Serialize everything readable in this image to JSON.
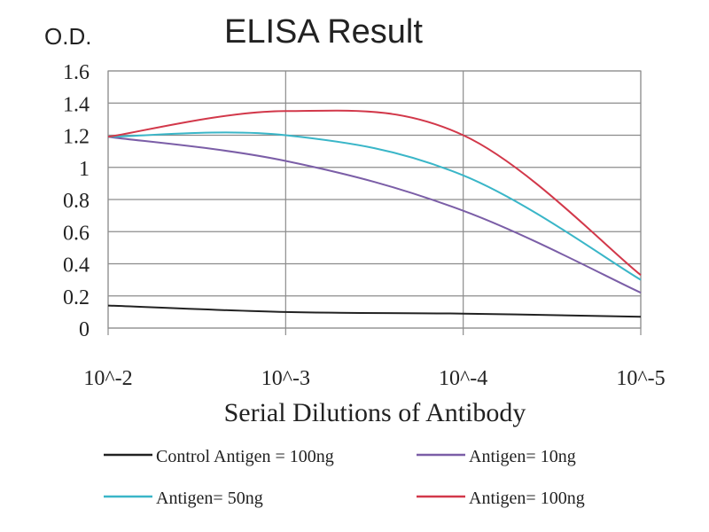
{
  "chart_data": {
    "type": "line",
    "title": "ELISA Result",
    "ylabel": "O.D.",
    "xlabel": "Serial Dilutions of Antibody",
    "categories": [
      "10^-2",
      "10^-3",
      "10^-4",
      "10^-5"
    ],
    "yticks": [
      "0",
      "0.2",
      "0.4",
      "0.6",
      "0.8",
      "1",
      "1.2",
      "1.4",
      "1.6"
    ],
    "ylim": [
      0,
      1.6
    ],
    "grid": true,
    "legend_position": "bottom",
    "series": [
      {
        "name": "Control Antigen = 100ng",
        "color": "#222222",
        "values": [
          0.14,
          0.1,
          0.09,
          0.07
        ]
      },
      {
        "name": "Antigen= 10ng",
        "color": "#7b5ea7",
        "values": [
          1.19,
          1.04,
          0.73,
          0.22
        ]
      },
      {
        "name": "Antigen= 50ng",
        "color": "#3ab6c8",
        "values": [
          1.19,
          1.2,
          0.95,
          0.3
        ]
      },
      {
        "name": "Antigen= 100ng",
        "color": "#d2384a",
        "values": [
          1.19,
          1.35,
          1.2,
          0.33
        ]
      }
    ]
  }
}
